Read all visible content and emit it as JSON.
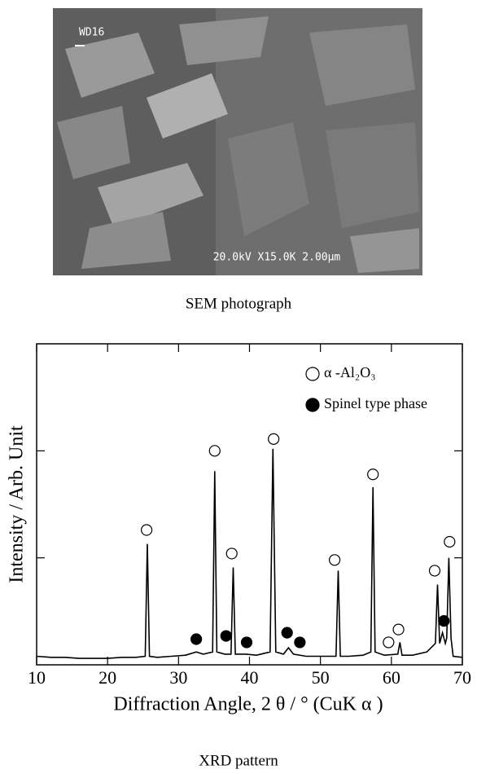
{
  "sem": {
    "labels": {
      "top": "WD16",
      "bottom": "20.0kV X15.0K 2.00μm"
    },
    "caption": "SEM photograph"
  },
  "chart_data": {
    "type": "line",
    "x": [
      10,
      12,
      14,
      16,
      18,
      20,
      22,
      24,
      25.3,
      25.6,
      25.9,
      27,
      29,
      31,
      32.5,
      33.5,
      34.8,
      35.1,
      35.4,
      36.5,
      37.4,
      37.7,
      38,
      39.5,
      41,
      42.9,
      43.3,
      43.7,
      44.8,
      45.5,
      46.2,
      48,
      50,
      52.2,
      52.5,
      52.8,
      54,
      56,
      57.1,
      57.4,
      57.7,
      59,
      60.9,
      61.2,
      61.5,
      63,
      65,
      66.2,
      66.5,
      66.8,
      67.2,
      67.6,
      67.8,
      68.1,
      68.4,
      68.7,
      70
    ],
    "series": [
      {
        "color": "#000000",
        "values": [
          0.08,
          0.07,
          0.07,
          0.06,
          0.06,
          0.06,
          0.07,
          0.07,
          0.08,
          1.13,
          0.08,
          0.07,
          0.08,
          0.09,
          0.12,
          0.1,
          0.12,
          1.81,
          0.12,
          0.1,
          0.1,
          0.91,
          0.1,
          0.1,
          0.09,
          0.12,
          2.02,
          0.12,
          0.1,
          0.16,
          0.1,
          0.08,
          0.08,
          0.08,
          0.88,
          0.08,
          0.08,
          0.09,
          0.12,
          1.66,
          0.12,
          0.09,
          0.1,
          0.21,
          0.09,
          0.09,
          0.12,
          0.2,
          0.75,
          0.2,
          0.3,
          0.2,
          0.25,
          1.0,
          0.25,
          0.08,
          0.07
        ]
      }
    ],
    "markers": [
      {
        "name": "α -Al₂O₃",
        "style": "open",
        "x": [
          25.5,
          35.1,
          37.5,
          43.4,
          52.0,
          57.4,
          59.6,
          61.0,
          66.1,
          68.2
        ],
        "y": [
          1.26,
          2.0,
          1.04,
          2.11,
          0.98,
          1.78,
          0.21,
          0.33,
          0.88,
          1.15
        ]
      },
      {
        "name": "Spinel type phase",
        "style": "filled",
        "x": [
          32.5,
          36.7,
          39.6,
          45.3,
          47.1,
          67.4
        ],
        "y": [
          0.24,
          0.27,
          0.21,
          0.3,
          0.21,
          0.41
        ]
      }
    ],
    "xlabel": "Diffraction Angle, 2 θ / °   (CuK α )",
    "ylabel": "Intensity / Arb. Unit",
    "xlim": [
      10,
      70
    ],
    "xticks": [
      10,
      20,
      30,
      40,
      50,
      60,
      70
    ],
    "ylim": [
      0,
      3
    ],
    "yticks": [
      1,
      2
    ],
    "ytick_labels": false,
    "legend": "upper right"
  },
  "caption": "XRD pattern"
}
